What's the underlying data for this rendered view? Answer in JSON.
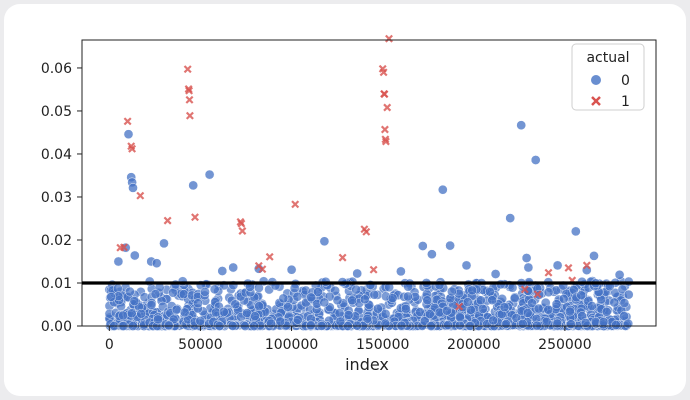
{
  "chart_data": {
    "type": "scatter",
    "title": "",
    "xlabel": "index",
    "ylabel": "",
    "xlim": [
      -15000,
      300000
    ],
    "ylim": [
      0,
      0.0665
    ],
    "x_ticks": [
      0,
      50000,
      100000,
      150000,
      200000,
      250000
    ],
    "x_tick_labels": [
      "0",
      "50000",
      "100000",
      "150000",
      "200000",
      "250000"
    ],
    "y_ticks": [
      0.0,
      0.01,
      0.02,
      0.03,
      0.04,
      0.05,
      0.06
    ],
    "y_tick_labels": [
      "0.00",
      "0.01",
      "0.02",
      "0.03",
      "0.04",
      "0.05",
      "0.06"
    ],
    "threshold": 0.01,
    "legend": {
      "title": "actual",
      "position": "top-right",
      "entries": [
        "0",
        "1"
      ]
    },
    "colors": {
      "class0": "#4472c4",
      "class1": "#d9534f",
      "threshold": "#000000"
    },
    "series": [
      {
        "name": "0",
        "marker": "circle",
        "points": [
          [
            10500,
            0.0446
          ],
          [
            12000,
            0.0346
          ],
          [
            12500,
            0.0334
          ],
          [
            13000,
            0.0321
          ],
          [
            30000,
            0.0192
          ],
          [
            46000,
            0.0327
          ],
          [
            55000,
            0.0352
          ],
          [
            82000,
            0.0133
          ],
          [
            118000,
            0.0197
          ],
          [
            183000,
            0.0317
          ],
          [
            187000,
            0.0187
          ],
          [
            172000,
            0.0186
          ],
          [
            177000,
            0.0167
          ],
          [
            220000,
            0.0251
          ],
          [
            226000,
            0.0467
          ],
          [
            229000,
            0.0158
          ],
          [
            234000,
            0.0386
          ],
          [
            256000,
            0.022
          ],
          [
            266000,
            0.0163
          ],
          [
            5000,
            0.015
          ],
          [
            9000,
            0.0182
          ],
          [
            14000,
            0.0164
          ],
          [
            23000,
            0.015
          ],
          [
            26000,
            0.0146
          ],
          [
            62000,
            0.0128
          ],
          [
            68000,
            0.0136
          ],
          [
            100000,
            0.0131
          ],
          [
            136000,
            0.0122
          ],
          [
            160000,
            0.0127
          ],
          [
            196000,
            0.0141
          ],
          [
            212000,
            0.0121
          ],
          [
            230000,
            0.0136
          ],
          [
            246000,
            0.0141
          ],
          [
            262000,
            0.013
          ],
          [
            280000,
            0.0119
          ],
          [
            285000,
            0.0073
          ]
        ]
      },
      {
        "name": "1",
        "marker": "x",
        "points": [
          [
            6000,
            0.0182
          ],
          [
            8000,
            0.0183
          ],
          [
            10000,
            0.0476
          ],
          [
            12000,
            0.0418
          ],
          [
            12500,
            0.0412
          ],
          [
            17000,
            0.0303
          ],
          [
            32000,
            0.0245
          ],
          [
            43000,
            0.0597
          ],
          [
            43500,
            0.0551
          ],
          [
            43800,
            0.0547
          ],
          [
            44000,
            0.0526
          ],
          [
            44200,
            0.0489
          ],
          [
            47000,
            0.0253
          ],
          [
            72000,
            0.0242
          ],
          [
            72500,
            0.0238
          ],
          [
            73000,
            0.0221
          ],
          [
            82000,
            0.014
          ],
          [
            84000,
            0.0132
          ],
          [
            88000,
            0.0161
          ],
          [
            102000,
            0.0283
          ],
          [
            128000,
            0.0159
          ],
          [
            140000,
            0.0225
          ],
          [
            141000,
            0.0219
          ],
          [
            150000,
            0.0598
          ],
          [
            150500,
            0.059
          ],
          [
            150800,
            0.054
          ],
          [
            151000,
            0.0539
          ],
          [
            151200,
            0.0457
          ],
          [
            151500,
            0.0434
          ],
          [
            151800,
            0.0429
          ],
          [
            152500,
            0.0508
          ],
          [
            153500,
            0.0668
          ],
          [
            145000,
            0.0131
          ],
          [
            192000,
            0.0045
          ],
          [
            228000,
            0.0085
          ],
          [
            235000,
            0.0074
          ],
          [
            241000,
            0.0124
          ],
          [
            252000,
            0.0135
          ],
          [
            254000,
            0.0106
          ],
          [
            262000,
            0.0141
          ]
        ]
      }
    ]
  }
}
